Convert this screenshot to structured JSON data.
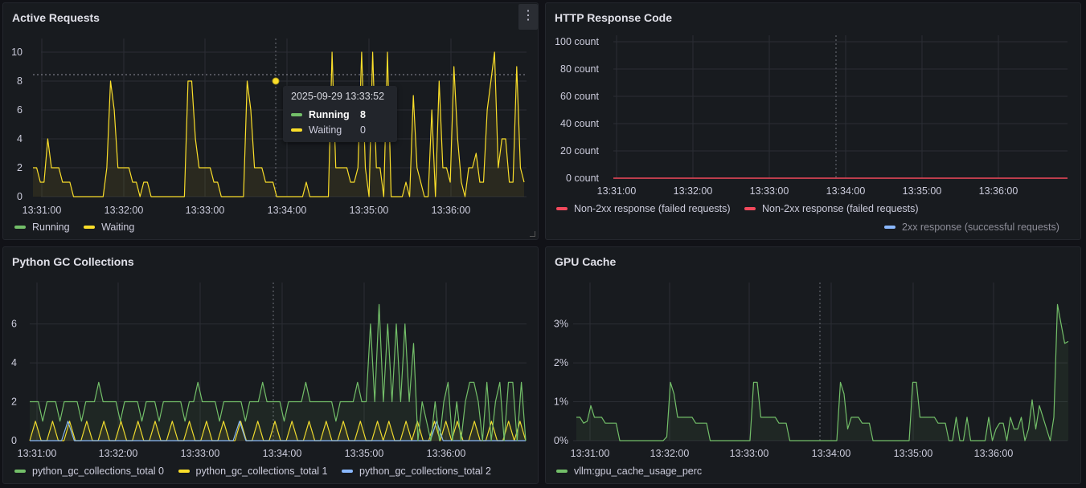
{
  "colors": {
    "green": "#73bf69",
    "yellow": "#fade2a",
    "red": "#f2495c",
    "blue": "#8ab8ff"
  },
  "panels": {
    "active_requests": {
      "title": "Active Requests",
      "menu_icon": "more-vertical-icon",
      "menu_label": "⋮",
      "y_ticks": [
        "10",
        "8",
        "6",
        "4",
        "2",
        "0"
      ],
      "x_ticks": [
        "13:31:00",
        "13:32:00",
        "13:33:00",
        "13:34:00",
        "13:35:00",
        "13:36:00"
      ],
      "legend": [
        "Running",
        "Waiting"
      ],
      "tooltip": {
        "timestamp": "2025-09-29 13:33:52",
        "rows": [
          {
            "name": "Running",
            "value": "8"
          },
          {
            "name": "Waiting",
            "value": "0"
          }
        ]
      }
    },
    "http_response": {
      "title": "HTTP Response Code",
      "y_ticks": [
        "100 count",
        "80 count",
        "60 count",
        "40 count",
        "20 count",
        "0 count"
      ],
      "x_ticks": [
        "13:31:00",
        "13:32:00",
        "13:33:00",
        "13:34:00",
        "13:35:00",
        "13:36:00"
      ],
      "legend": [
        "Non-2xx response (failed requests)",
        "Non-2xx response (failed requests)"
      ],
      "legend_hidden": "2xx response (successful requests)"
    },
    "python_gc": {
      "title": "Python GC Collections",
      "y_ticks": [
        "6",
        "4",
        "2",
        "0"
      ],
      "x_ticks": [
        "13:31:00",
        "13:32:00",
        "13:33:00",
        "13:34:00",
        "13:35:00",
        "13:36:00"
      ],
      "legend": [
        "python_gc_collections_total 0",
        "python_gc_collections_total 1",
        "python_gc_collections_total 2"
      ]
    },
    "gpu_cache": {
      "title": "GPU Cache",
      "y_ticks": [
        "3%",
        "2%",
        "1%",
        "0%"
      ],
      "x_ticks": [
        "13:31:00",
        "13:32:00",
        "13:33:00",
        "13:34:00",
        "13:35:00",
        "13:36:00"
      ],
      "legend": [
        "vllm:gpu_cache_usage_perc"
      ]
    }
  },
  "chart_data": [
    {
      "type": "line",
      "title": "Active Requests",
      "x_range": [
        "13:30:45",
        "13:36:50"
      ],
      "ylim": [
        0,
        10.5
      ],
      "series": [
        {
          "name": "Running",
          "values": [
            0,
            0,
            0,
            0,
            0,
            0,
            0,
            0
          ]
        },
        {
          "name": "Waiting",
          "values": [
            2,
            2,
            1,
            1,
            4,
            2,
            2,
            2,
            1,
            1,
            1,
            0,
            0,
            0,
            0,
            0,
            0,
            0,
            0,
            0,
            2,
            8,
            6,
            2,
            2,
            2,
            2,
            1,
            1,
            0,
            1,
            1,
            0,
            0,
            0,
            0,
            0,
            0,
            0,
            0,
            0,
            0,
            8,
            8,
            4,
            2,
            2,
            2,
            2,
            1,
            1,
            0,
            0,
            0,
            0,
            0,
            0,
            0,
            8,
            6,
            2,
            2,
            2,
            1,
            1,
            1,
            0,
            0,
            0,
            0,
            0,
            0,
            0,
            0,
            1,
            0,
            0,
            0,
            0,
            0,
            0,
            10,
            2,
            2,
            2,
            2,
            1,
            1,
            2,
            10,
            2,
            0,
            10,
            2,
            2,
            0,
            10,
            0,
            0,
            0,
            0,
            1,
            0,
            7,
            2,
            1,
            0,
            0,
            6,
            0,
            8,
            2,
            2,
            1,
            9,
            4,
            1,
            0,
            2,
            2,
            3,
            1,
            1,
            6,
            8,
            10,
            2,
            4,
            4,
            1,
            1,
            9,
            2,
            1
          ]
        }
      ]
    },
    {
      "type": "line",
      "title": "HTTP Response Code",
      "ylim": [
        0,
        100
      ],
      "series": [
        {
          "name": "Non-2xx response (failed requests)",
          "values": [
            0,
            0
          ]
        },
        {
          "name": "Non-2xx response (failed requests)",
          "values": [
            0,
            0
          ]
        }
      ]
    },
    {
      "type": "line",
      "title": "Python GC Collections",
      "ylim": [
        0,
        7.8
      ],
      "series": [
        {
          "name": "python_gc_collections_total 0",
          "values": [
            2,
            2,
            2,
            1,
            2,
            2,
            2,
            1,
            2,
            2,
            2,
            2,
            1,
            2,
            2,
            2,
            3,
            2,
            2,
            2,
            2,
            1,
            2,
            2,
            2,
            2,
            1,
            2,
            2,
            2,
            1,
            2,
            2,
            2,
            2,
            2,
            1,
            2,
            2,
            3,
            2,
            2,
            2,
            2,
            1,
            2,
            2,
            2,
            2,
            2,
            1,
            2,
            2,
            2,
            3,
            2,
            2,
            2,
            2,
            1,
            2,
            2,
            2,
            2,
            3,
            2,
            2,
            2,
            2,
            2,
            2,
            1,
            2,
            2,
            2,
            2,
            3,
            2,
            2,
            6,
            2,
            7,
            2,
            6,
            2,
            6,
            2,
            6,
            2,
            5,
            0,
            2,
            1,
            0,
            2,
            0,
            2,
            3,
            0,
            2,
            0,
            2,
            3,
            3,
            2,
            0,
            3,
            0,
            2,
            3,
            0,
            3,
            3,
            0,
            3,
            0
          ]
        },
        {
          "name": "python_gc_collections_total 1",
          "values": [
            0,
            1,
            0,
            0,
            1,
            0,
            0,
            1,
            0,
            0,
            1,
            0,
            0,
            1,
            0,
            0,
            1,
            0,
            0,
            1,
            0,
            0,
            1,
            0,
            0,
            1,
            0,
            0,
            1,
            0,
            0,
            1,
            0,
            0,
            1,
            0,
            0,
            1,
            0,
            0,
            1,
            0,
            0,
            1,
            0,
            0,
            1,
            0,
            0,
            1,
            0,
            0,
            1,
            0,
            0,
            1,
            0,
            0,
            1,
            0,
            0,
            1,
            0,
            1,
            0,
            0,
            1,
            0,
            1,
            0,
            0,
            1,
            0,
            1,
            0,
            1,
            0,
            0,
            1,
            0,
            0,
            1,
            0,
            0,
            1,
            0,
            1,
            0
          ]
        },
        {
          "name": "python_gc_collections_total 2",
          "values": [
            0,
            0,
            0,
            0,
            0,
            0,
            1,
            0,
            0,
            0,
            0,
            0,
            0,
            0,
            0,
            0,
            0,
            0,
            0,
            0,
            0,
            0,
            0,
            0,
            0,
            0,
            0,
            0,
            0,
            0,
            0,
            0,
            0,
            1,
            0,
            0,
            0,
            0,
            0,
            0,
            0,
            0,
            0,
            0,
            0,
            0,
            0,
            0,
            0,
            0,
            0,
            0,
            0,
            0,
            0,
            0,
            0,
            0,
            0,
            0,
            0,
            0,
            0,
            0,
            1,
            0,
            0,
            0,
            0,
            0,
            0,
            0,
            0,
            0,
            0,
            0,
            0,
            0,
            0
          ]
        }
      ]
    },
    {
      "type": "line",
      "title": "GPU Cache",
      "ylim": [
        0,
        3.9
      ],
      "series": [
        {
          "name": "vllm:gpu_cache_usage_perc",
          "values": [
            0.6,
            0.6,
            0.45,
            0.5,
            0.9,
            0.6,
            0.6,
            0.6,
            0.45,
            0.45,
            0.45,
            0.45,
            0,
            0,
            0,
            0,
            0,
            0,
            0,
            0,
            0,
            0,
            0,
            0,
            0,
            0.1,
            1.5,
            1.2,
            0.6,
            0.6,
            0.6,
            0.6,
            0.6,
            0.45,
            0.45,
            0.45,
            0.45,
            0,
            0,
            0,
            0,
            0,
            0,
            0,
            0,
            0,
            0,
            0,
            0,
            1.5,
            1.5,
            0.6,
            0.6,
            0.6,
            0.6,
            0.6,
            0.45,
            0.45,
            0.45,
            0,
            0,
            0,
            0,
            0,
            0,
            0,
            0,
            0,
            0,
            0,
            0,
            0,
            0,
            1.5,
            1.2,
            0.3,
            0.6,
            0.6,
            0.6,
            0.45,
            0.45,
            0.45,
            0,
            0,
            0,
            0,
            0,
            0,
            0,
            0,
            0,
            0,
            0,
            1.5,
            1.5,
            0.6,
            0.6,
            0.6,
            0.6,
            0.6,
            0.45,
            0.45,
            0.45,
            0,
            0,
            0.6,
            0,
            0,
            0.6,
            0,
            0,
            0,
            0,
            0,
            0.6,
            0,
            0.3,
            0.45,
            0.45,
            0,
            0.6,
            0.3,
            0.3,
            0.6,
            0,
            0.3,
            1.05,
            0.3,
            0.9,
            0.6,
            0.3,
            0,
            0.6,
            3.5,
            3.0,
            2.5,
            2.55
          ]
        }
      ]
    }
  ]
}
